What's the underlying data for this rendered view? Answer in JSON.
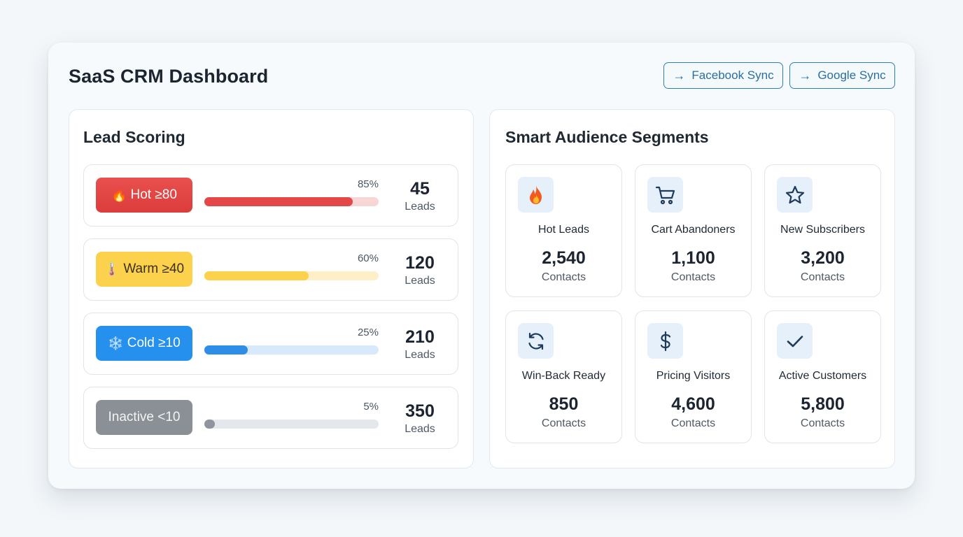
{
  "header": {
    "title": "SaaS CRM Dashboard",
    "buttons": [
      {
        "label": "Facebook Sync",
        "icon": "arrow-right-icon"
      },
      {
        "label": "Google Sync",
        "icon": "arrow-right-icon"
      }
    ]
  },
  "lead_scoring": {
    "title": "Lead Scoring",
    "tiers": [
      {
        "label": "Hot ≥80",
        "emoji": "🔥",
        "percent": 85,
        "percent_label": "85%",
        "count": "45",
        "unit": "Leads",
        "color": "#e34747",
        "track": "#f9d6d6"
      },
      {
        "label": "Warm ≥40",
        "emoji": "🌡️",
        "percent": 60,
        "percent_label": "60%",
        "count": "120",
        "unit": "Leads",
        "color": "#fcd14c",
        "track": "#fdf0c9"
      },
      {
        "label": "Cold ≥10",
        "emoji": "❄️",
        "percent": 25,
        "percent_label": "25%",
        "count": "210",
        "unit": "Leads",
        "color": "#2e8de6",
        "track": "#d8e9fb"
      },
      {
        "label": "Inactive <10",
        "emoji": "",
        "percent": 5,
        "percent_label": "5%",
        "count": "350",
        "unit": "Leads",
        "color": "#8e959c",
        "track": "#e4e8ec"
      }
    ]
  },
  "segments": {
    "title": "Smart Audience Segments",
    "items": [
      {
        "name": "Hot Leads",
        "count": "2,540",
        "unit": "Contacts",
        "icon": "fire-icon"
      },
      {
        "name": "Cart Abandoners",
        "count": "1,100",
        "unit": "Contacts",
        "icon": "shopping-cart-icon"
      },
      {
        "name": "New Subscribers",
        "count": "3,200",
        "unit": "Contacts",
        "icon": "star-icon"
      },
      {
        "name": "Win-Back Ready",
        "count": "850",
        "unit": "Contacts",
        "icon": "refresh-icon"
      },
      {
        "name": "Pricing Visitors",
        "count": "4,600",
        "unit": "Contacts",
        "icon": "dollar-icon"
      },
      {
        "name": "Active Customers",
        "count": "5,800",
        "unit": "Contacts",
        "icon": "checkmark-icon"
      }
    ]
  }
}
